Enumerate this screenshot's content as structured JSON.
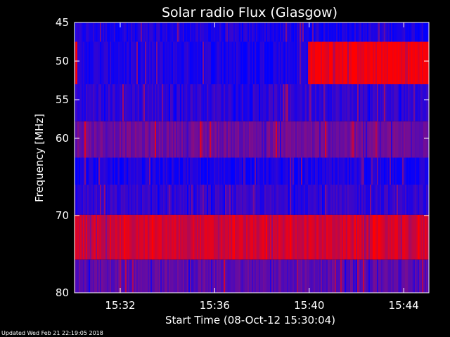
{
  "chart_data": {
    "type": "heatmap",
    "title": "Solar radio Flux (Glasgow)",
    "xlabel": "Start Time (08-Oct-12 15:30:04)",
    "ylabel": "Frequency [MHz]",
    "x_unit": "time",
    "xlim": [
      "15:30:04",
      "15:45:04"
    ],
    "ylim": [
      45,
      80
    ],
    "y_ticks": [
      45,
      50,
      55,
      60,
      70,
      80
    ],
    "x_ticks": [
      "15:32",
      "15:36",
      "15:40",
      "15:44"
    ],
    "colormap": {
      "low": "#0000ff",
      "mid": "#7a0e8f",
      "high": "#ff0000"
    },
    "bands": [
      {
        "from": 44.5,
        "to": 47.5,
        "level": 0.12
      },
      {
        "from": 47.5,
        "to": 53.0,
        "level": 0.12,
        "segments": [
          {
            "start": "15:30:04",
            "end": "15:30:10",
            "level": 0.9
          },
          {
            "start": "15:40:00",
            "end": "15:45:04",
            "level": 0.95
          }
        ]
      },
      {
        "from": 53.0,
        "to": 57.8,
        "level": 0.2
      },
      {
        "from": 57.8,
        "to": 62.5,
        "level": 0.45
      },
      {
        "from": 62.5,
        "to": 66.0,
        "level": 0.1
      },
      {
        "from": 66.0,
        "to": 69.9,
        "level": 0.2
      },
      {
        "from": 69.9,
        "to": 75.7,
        "level": 0.82
      },
      {
        "from": 75.7,
        "to": 80.5,
        "level": 0.38
      }
    ]
  },
  "footer": {
    "updated": "Updated Wed Feb 21 22:19:05 2018"
  }
}
